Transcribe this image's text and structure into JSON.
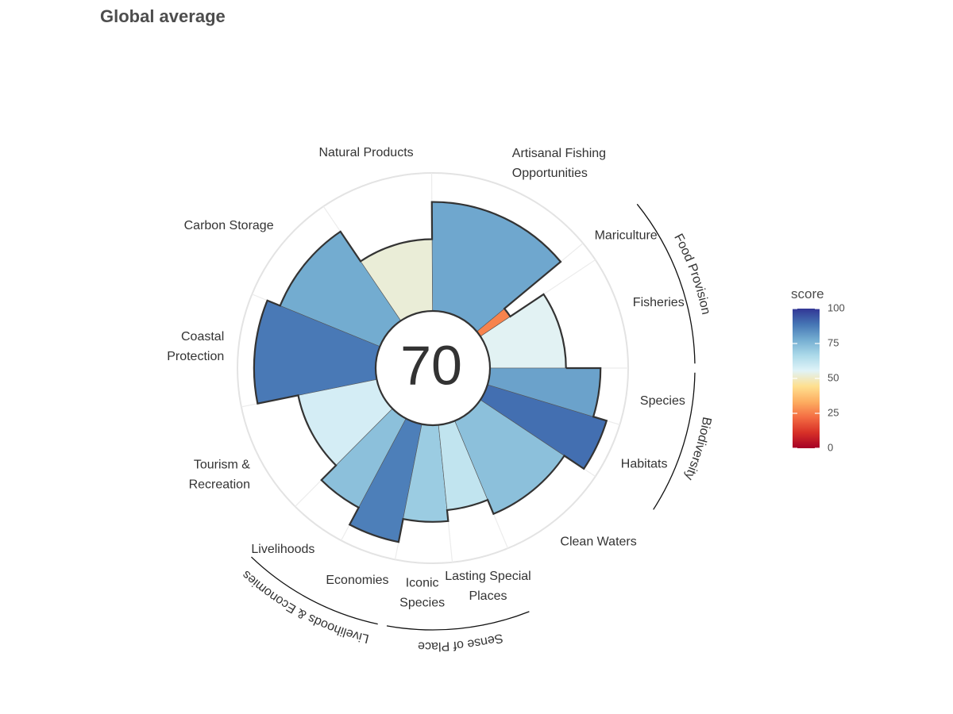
{
  "title": "Global average",
  "chart_data": {
    "type": "bar",
    "subtype": "polar-flower",
    "title": "Global average",
    "center_score": "70",
    "score_range": [
      0,
      100
    ],
    "goals": [
      {
        "name": "Fisheries",
        "label_lines": [
          "Fisheries"
        ],
        "score": 55,
        "weight": 1.0,
        "group": "Food Provision"
      },
      {
        "name": "Mariculture",
        "label_lines": [
          "Mariculture"
        ],
        "score": 26,
        "weight": 0.18,
        "group": "Food Provision"
      },
      {
        "name": "Artisanal Fishing Opportunities",
        "label_lines": [
          "Artisanal Fishing",
          "Opportunities"
        ],
        "score": 79,
        "weight": 1.5
      },
      {
        "name": "Natural Products",
        "label_lines": [
          "Natural Products"
        ],
        "score": 52,
        "weight": 1.0
      },
      {
        "name": "Carbon Storage",
        "label_lines": [
          "Carbon Storage"
        ],
        "score": 78,
        "weight": 1.0
      },
      {
        "name": "Coastal Protection",
        "label_lines": [
          "Coastal",
          "Protection"
        ],
        "score": 88,
        "weight": 1.0
      },
      {
        "name": "Tourism & Recreation",
        "label_lines": [
          "Tourism &",
          "Recreation"
        ],
        "score": 58,
        "weight": 1.0
      },
      {
        "name": "Livelihoods",
        "label_lines": [
          "Livelihoods"
        ],
        "score": 73,
        "weight": 0.5,
        "group": "Livelihoods & Economies"
      },
      {
        "name": "Economies",
        "label_lines": [
          "Economies"
        ],
        "score": 87,
        "weight": 0.5,
        "group": "Livelihoods & Economies"
      },
      {
        "name": "Iconic Species",
        "label_lines": [
          "Iconic",
          "Species"
        ],
        "score": 70,
        "weight": 0.5,
        "group": "Sense of Place"
      },
      {
        "name": "Lasting Special Places",
        "label_lines": [
          "Lasting Special",
          "Places"
        ],
        "score": 62,
        "weight": 0.5,
        "group": "Sense of Place"
      },
      {
        "name": "Clean Waters",
        "label_lines": [
          "Clean Waters"
        ],
        "score": 73,
        "weight": 1.0
      },
      {
        "name": "Habitats",
        "label_lines": [
          "Habitats"
        ],
        "score": 90,
        "weight": 0.5,
        "group": "Biodiversity"
      },
      {
        "name": "Species",
        "label_lines": [
          "Species"
        ],
        "score": 80,
        "weight": 0.5,
        "group": "Biodiversity"
      }
    ],
    "groups": [
      {
        "name": "Food Provision"
      },
      {
        "name": "Biodiversity"
      },
      {
        "name": "Sense of Place"
      },
      {
        "name": "Livelihoods & Economies"
      }
    ],
    "legend": {
      "title": "score",
      "ticks": [
        "0",
        "25",
        "50",
        "75",
        "100"
      ],
      "colors": [
        "#a50026",
        "#d73027",
        "#f46d43",
        "#fdae61",
        "#fee090",
        "#e0f3f8",
        "#abd9e9",
        "#74add1",
        "#4575b4",
        "#313695"
      ]
    }
  }
}
